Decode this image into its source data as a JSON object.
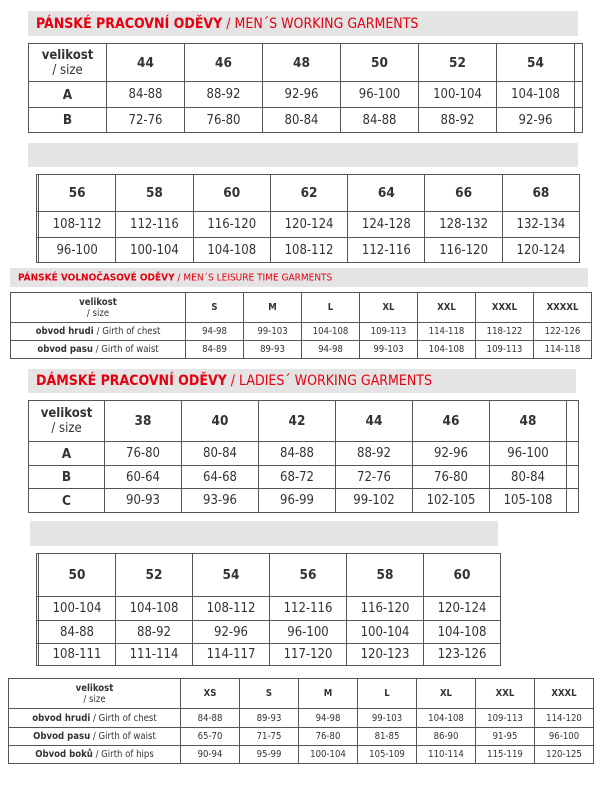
{
  "sections": [
    {
      "cz": "PÁNSKÉ PRACOVNÍ ODĚVY",
      "en": " / MEN´S WORKING GARMENTS"
    },
    {
      "cz": "PÁNSKÉ VOLNOČASOVÉ ODĚVY",
      "en": " / MEN´S LEISURE TIME GARMENTS"
    },
    {
      "cz": "DÁMSKÉ PRACOVNÍ ODĚVY",
      "en": " / LADIES´ WORKING GARMENTS"
    }
  ],
  "size_label": {
    "cz": "velikost",
    "en": "/ size"
  },
  "tables": [
    {
      "header": [
        "44",
        "46",
        "48",
        "50",
        "52",
        "54"
      ],
      "rows": [
        {
          "label": "A",
          "values": [
            "84-88",
            "88-92",
            "92-96",
            "96-100",
            "100-104",
            "104-108"
          ]
        },
        {
          "label": "B",
          "values": [
            "72-76",
            "76-80",
            "80-84",
            "84-88",
            "88-92",
            "92-96"
          ]
        }
      ]
    },
    {
      "header": [
        "56",
        "58",
        "60",
        "62",
        "64",
        "66",
        "68"
      ],
      "rows": [
        {
          "values": [
            "108-112",
            "112-116",
            "116-120",
            "120-124",
            "124-128",
            "128-132",
            "132-134"
          ]
        },
        {
          "values": [
            "96-100",
            "100-104",
            "104-108",
            "108-112",
            "112-116",
            "116-120",
            "120-124"
          ]
        }
      ]
    },
    {
      "header": [
        "S",
        "M",
        "L",
        "XL",
        "XXL",
        "XXXL",
        "XXXXL"
      ],
      "rows": [
        {
          "label_cz": "obvod hrudi ",
          "label_en": " / Girth of chest",
          "values": [
            "94-98",
            "99-103",
            "104-108",
            "109-113",
            "114-118",
            "118-122",
            "122-126"
          ]
        },
        {
          "label_cz": "obvod pasu",
          "label_en": " / Girth of waist",
          "values": [
            "84-89",
            "89-93",
            "94-98",
            "99-103",
            "104-108",
            "109-113",
            "114-118"
          ]
        }
      ]
    },
    {
      "header": [
        "38",
        "40",
        "42",
        "44",
        "46",
        "48"
      ],
      "rows": [
        {
          "label": "A",
          "values": [
            "76-80",
            "80-84",
            "84-88",
            "88-92",
            "92-96",
            "96-100"
          ]
        },
        {
          "label": "B",
          "values": [
            "60-64",
            "64-68",
            "68-72",
            "72-76",
            "76-80",
            "80-84"
          ]
        },
        {
          "label": "C",
          "values": [
            "90-93",
            "93-96",
            "96-99",
            "99-102",
            "102-105",
            "105-108"
          ]
        }
      ]
    },
    {
      "header": [
        "50",
        "52",
        "54",
        "56",
        "58",
        "60"
      ],
      "rows": [
        {
          "values": [
            "100-104",
            "104-108",
            "108-112",
            "112-116",
            "116-120",
            "120-124"
          ]
        },
        {
          "values": [
            "84-88",
            "88-92",
            "92-96",
            "96-100",
            "100-104",
            "104-108"
          ]
        },
        {
          "values": [
            "108-111",
            "111-114",
            "114-117",
            "117-120",
            "120-123",
            "123-126"
          ]
        }
      ]
    },
    {
      "header": [
        "XS",
        "S",
        "M",
        "L",
        "XL",
        "XXL",
        "XXXL"
      ],
      "rows": [
        {
          "label_cz": "obvod hrudi",
          "label_en": " / Girth of chest",
          "values": [
            "84-88",
            "89-93",
            "94-98",
            "99-103",
            "104-108",
            "109-113",
            "114-120"
          ]
        },
        {
          "label_cz": "Obvod pasu",
          "label_en": " / Girth of waist",
          "values": [
            "65-70",
            "71-75",
            "76-80",
            "81-85",
            "86-90",
            "91-95",
            "96-100"
          ]
        },
        {
          "label_cz": "Obvod boků",
          "label_en": " / Girth of hips",
          "values": [
            "90-94",
            "95-99",
            "100-104",
            "105-109",
            "110-114",
            "115-119",
            "120-125"
          ]
        }
      ]
    }
  ],
  "colors": {
    "accent": "#e3000f",
    "bar": "#e4e4e4",
    "border": "#555555"
  }
}
